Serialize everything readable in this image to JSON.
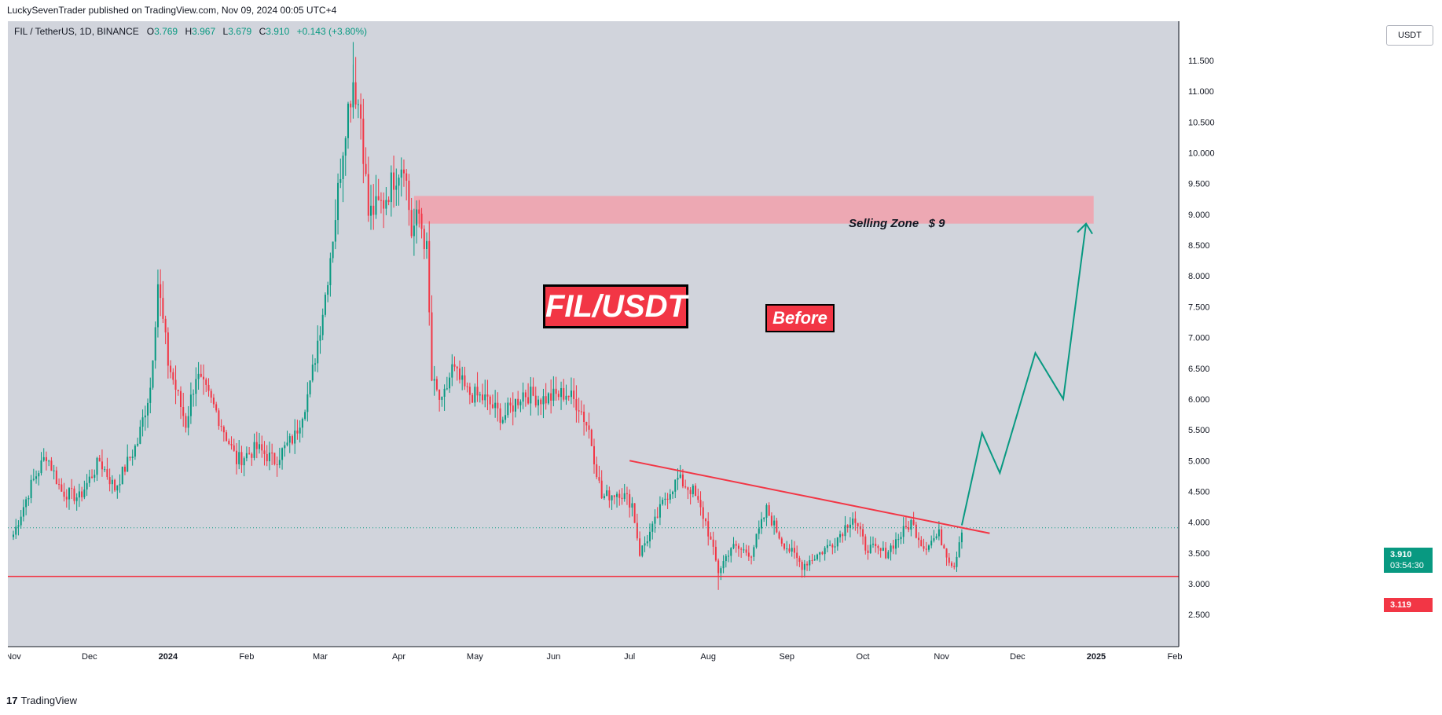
{
  "header": {
    "published_text": "LuckySevenTrader published on TradingView.com, Nov 09, 2024 00:05 UTC+4"
  },
  "symbol": {
    "name": "FIL / TetherUS, 1D, BINANCE",
    "open_label": "O",
    "open": "3.769",
    "high_label": "H",
    "high": "3.967",
    "low_label": "L",
    "low": "3.679",
    "close_label": "C",
    "close": "3.910",
    "change": "+0.143 (+3.80%)"
  },
  "currency": "USDT",
  "annotations": {
    "title": "FIL/USDT",
    "before": "Before",
    "selling_zone": "Selling Zone   $ 9"
  },
  "price_tag": {
    "price": "3.910",
    "countdown": "03:54:30"
  },
  "support_tag": "3.119",
  "footer": {
    "logo_glyph": "17",
    "brand": "TradingView"
  },
  "colors": {
    "up": "#089981",
    "down": "#f23645",
    "background": "#d1d4dc",
    "zone": "#f2a0ac",
    "projection": "#089981"
  },
  "chart_data": {
    "type": "candlestick",
    "title": "",
    "xlabel": "",
    "ylabel": "",
    "ylim": [
      2.2,
      11.9
    ],
    "y_ticks": [
      "2.500",
      "3.000",
      "3.500",
      "4.000",
      "4.500",
      "5.000",
      "5.500",
      "6.000",
      "6.500",
      "7.000",
      "7.500",
      "8.000",
      "8.500",
      "9.000",
      "9.500",
      "10.000",
      "10.500",
      "11.000",
      "11.500"
    ],
    "x_ticks": [
      "Nov",
      "Dec",
      "2024",
      "Feb",
      "Mar",
      "Apr",
      "May",
      "Jun",
      "Jul",
      "Aug",
      "Sep",
      "Oct",
      "Nov",
      "Dec",
      "2025",
      "Feb"
    ],
    "grid": false,
    "series": [
      {
        "type": "close_path",
        "values": [
          [
            "2023-11-01",
            3.8
          ],
          [
            "2023-11-08",
            4.6
          ],
          [
            "2023-11-14",
            5.1
          ],
          [
            "2023-11-20",
            4.5
          ],
          [
            "2023-11-27",
            4.4
          ],
          [
            "2023-12-05",
            5.0
          ],
          [
            "2023-12-11",
            4.55
          ],
          [
            "2023-12-20",
            5.3
          ],
          [
            "2023-12-25",
            6.2
          ],
          [
            "2023-12-28",
            7.9
          ],
          [
            "2024-01-01",
            6.6
          ],
          [
            "2024-01-08",
            5.6
          ],
          [
            "2024-01-12",
            6.4
          ],
          [
            "2024-01-20",
            5.8
          ],
          [
            "2024-01-28",
            5.0
          ],
          [
            "2024-02-05",
            5.2
          ],
          [
            "2024-02-12",
            5.0
          ],
          [
            "2024-02-20",
            5.4
          ],
          [
            "2024-02-26",
            6.2
          ],
          [
            "2024-03-03",
            7.7
          ],
          [
            "2024-03-07",
            9.0
          ],
          [
            "2024-03-11",
            10.5
          ],
          [
            "2024-03-14",
            11.2
          ],
          [
            "2024-03-17",
            10.6
          ],
          [
            "2024-03-20",
            9.0
          ],
          [
            "2024-03-26",
            9.2
          ],
          [
            "2024-03-30",
            9.6
          ],
          [
            "2024-04-03",
            9.9
          ],
          [
            "2024-04-06",
            8.7
          ],
          [
            "2024-04-09",
            9.0
          ],
          [
            "2024-04-12",
            8.4
          ],
          [
            "2024-04-14",
            6.3
          ],
          [
            "2024-04-18",
            5.9
          ],
          [
            "2024-04-22",
            6.5
          ],
          [
            "2024-04-28",
            6.1
          ],
          [
            "2024-05-05",
            6.0
          ],
          [
            "2024-05-12",
            5.7
          ],
          [
            "2024-05-20",
            6.1
          ],
          [
            "2024-05-28",
            6.0
          ],
          [
            "2024-06-06",
            6.1
          ],
          [
            "2024-06-11",
            5.9
          ],
          [
            "2024-06-15",
            5.5
          ],
          [
            "2024-06-20",
            4.4
          ],
          [
            "2024-06-27",
            4.5
          ],
          [
            "2024-07-02",
            4.3
          ],
          [
            "2024-07-05",
            3.5
          ],
          [
            "2024-07-10",
            3.9
          ],
          [
            "2024-07-15",
            4.4
          ],
          [
            "2024-07-20",
            4.7
          ],
          [
            "2024-07-26",
            4.5
          ],
          [
            "2024-07-31",
            4.0
          ],
          [
            "2024-08-05",
            3.2
          ],
          [
            "2024-08-10",
            3.6
          ],
          [
            "2024-08-18",
            3.5
          ],
          [
            "2024-08-24",
            4.2
          ],
          [
            "2024-08-30",
            3.7
          ],
          [
            "2024-09-07",
            3.3
          ],
          [
            "2024-09-14",
            3.5
          ],
          [
            "2024-09-20",
            3.7
          ],
          [
            "2024-09-27",
            4.1
          ],
          [
            "2024-10-02",
            3.6
          ],
          [
            "2024-10-10",
            3.5
          ],
          [
            "2024-10-16",
            3.8
          ],
          [
            "2024-10-20",
            4.0
          ],
          [
            "2024-10-25",
            3.6
          ],
          [
            "2024-10-31",
            3.8
          ],
          [
            "2024-11-04",
            3.4
          ],
          [
            "2024-11-06",
            3.3
          ],
          [
            "2024-11-09",
            3.91
          ]
        ]
      }
    ],
    "intraday_extremes": {
      "high": 11.8,
      "low": 2.9
    },
    "selling_zone": {
      "low": 8.85,
      "high": 9.3,
      "start": "2024-04-07",
      "end": "2024-12-31"
    },
    "support_line": 3.119,
    "current_price_line": 3.91,
    "descending_trendline": [
      [
        "2024-07-01",
        5.0
      ],
      [
        "2024-11-20",
        3.82
      ]
    ],
    "projection_path": [
      [
        "2024-11-09",
        3.95
      ],
      [
        "2024-11-17",
        5.45
      ],
      [
        "2024-11-24",
        4.8
      ],
      [
        "2024-12-08",
        6.75
      ],
      [
        "2024-12-19",
        6.0
      ],
      [
        "2024-12-28",
        8.85
      ]
    ]
  }
}
